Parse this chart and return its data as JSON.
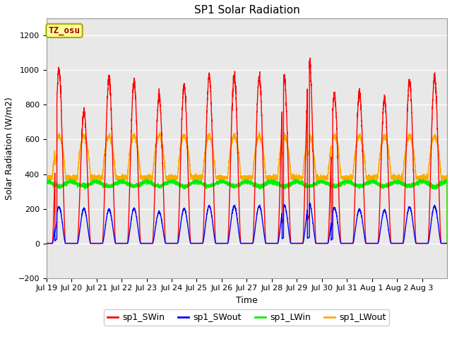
{
  "title": "SP1 Solar Radiation",
  "xlabel": "Time",
  "ylabel": "Solar Radiation (W/m2)",
  "ylim": [
    -200,
    1300
  ],
  "yticks": [
    -200,
    0,
    200,
    400,
    600,
    800,
    1000,
    1200
  ],
  "fig_bg_color": "#ffffff",
  "plot_bg_color": "#e8e8e8",
  "grid_color": "#ffffff",
  "series_colors": {
    "SWin": "#ff0000",
    "SWout": "#0000ff",
    "LWin": "#00ee00",
    "LWout": "#ffaa00"
  },
  "legend_labels": [
    "sp1_SWin",
    "sp1_SWout",
    "sp1_LWin",
    "sp1_LWout"
  ],
  "tz_label": "TZ_osu",
  "tz_box_color": "#ffff99",
  "tz_border_color": "#aaaa00",
  "tz_text_color": "#990000",
  "num_days": 16,
  "SWin_peaks": [
    1000,
    760,
    950,
    930,
    850,
    910,
    965,
    965,
    960,
    960,
    1060,
    860,
    870,
    830,
    940,
    965
  ],
  "SWout_peaks": [
    210,
    200,
    195,
    200,
    180,
    200,
    215,
    215,
    215,
    220,
    230,
    205,
    195,
    190,
    210,
    215
  ],
  "LWin_base": 330,
  "LWin_amplitude": 55,
  "LWout_base": 380,
  "LWout_amplitude": 240,
  "tick_labels": [
    "Jul 19",
    "Jul 20",
    "Jul 21",
    "Jul 22",
    "Jul 23",
    "Jul 24",
    "Jul 25",
    "Jul 26",
    "Jul 27",
    "Jul 28",
    "Jul 29",
    "Jul 30",
    "Jul 31",
    "Aug 1",
    "Aug 2",
    "Aug 3"
  ],
  "font_size": 9,
  "title_font_size": 11,
  "linewidth": 1.0
}
